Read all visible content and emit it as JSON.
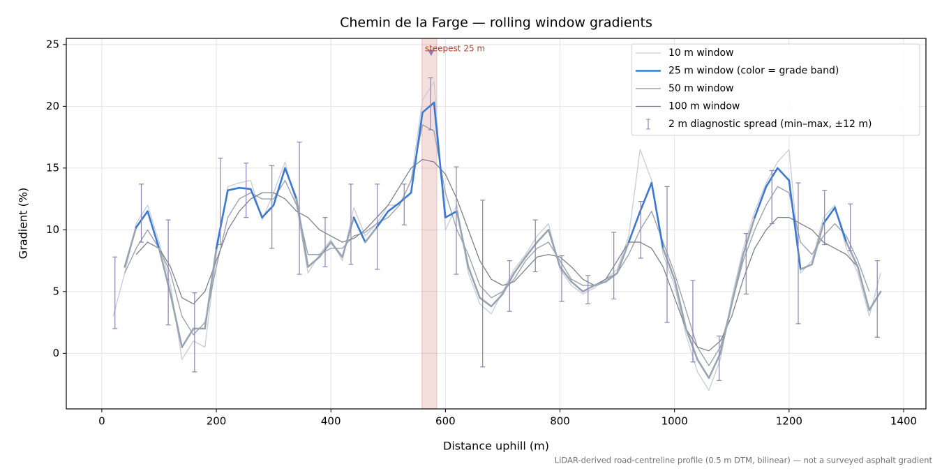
{
  "chart_data": {
    "type": "line",
    "title": "Chemin de la Farge — rolling window gradients",
    "x_label": "Distance uphill (m)",
    "y_label": "Gradient (%)",
    "footnote": "LiDAR-derived road-centreline profile (0.5 m DTM, bilinear) — not a surveyed asphalt gradient",
    "xlim": [
      -62,
      1439
    ],
    "ylim": [
      -4.5,
      25.5
    ],
    "xticks": [
      0,
      200,
      400,
      600,
      800,
      1000,
      1200,
      1400
    ],
    "yticks": [
      0,
      5,
      10,
      15,
      20,
      25
    ],
    "grid": true,
    "legend": "upper right",
    "x": [
      20,
      40,
      60,
      80,
      100,
      120,
      140,
      160,
      180,
      200,
      220,
      240,
      260,
      280,
      300,
      320,
      340,
      360,
      380,
      400,
      420,
      440,
      460,
      480,
      500,
      520,
      540,
      560,
      580,
      600,
      620,
      640,
      660,
      680,
      700,
      720,
      740,
      760,
      780,
      800,
      820,
      840,
      860,
      880,
      900,
      920,
      940,
      960,
      980,
      1000,
      1020,
      1040,
      1060,
      1080,
      1100,
      1120,
      1140,
      1160,
      1180,
      1200,
      1220,
      1240,
      1260,
      1280,
      1300,
      1320,
      1340,
      1360
    ],
    "series": [
      {
        "name": "10 m window",
        "color": "#c6ccd6",
        "width": 1.3,
        "values": [
          3.0,
          6.5,
          10.5,
          12.0,
          9.0,
          5.5,
          -0.5,
          1.0,
          0.5,
          8.0,
          13.5,
          13.8,
          14.0,
          10.8,
          13.0,
          15.5,
          12.0,
          6.5,
          8.0,
          9.2,
          7.5,
          11.8,
          9.5,
          10.5,
          12.0,
          12.0,
          14.0,
          20.5,
          22.0,
          10.0,
          12.0,
          6.5,
          4.0,
          3.2,
          5.0,
          6.8,
          8.0,
          9.5,
          10.5,
          6.8,
          5.5,
          4.8,
          5.3,
          6.0,
          6.8,
          9.5,
          16.5,
          14.0,
          8.0,
          5.5,
          1.5,
          -1.5,
          -3.0,
          -0.5,
          4.5,
          8.5,
          11.5,
          13.8,
          15.5,
          16.5,
          6.5,
          7.5,
          11.0,
          12.0,
          8.5,
          6.5,
          3.0,
          6.5
        ]
      },
      {
        "name": "25 m window (color = grade band)",
        "color": "#3a78d4",
        "width": 2.6,
        "band_thresholds": [
          10,
          20
        ],
        "band_colors": [
          "#98a4b2",
          "#3a78d4",
          "#e0861a"
        ],
        "values": [
          null,
          7.0,
          10.2,
          11.5,
          8.5,
          4.8,
          0.5,
          2.0,
          2.0,
          8.5,
          13.2,
          13.4,
          13.3,
          11.0,
          12.0,
          15.0,
          12.5,
          7.0,
          7.8,
          9.0,
          7.8,
          11.0,
          9.0,
          10.2,
          11.5,
          12.2,
          13.0,
          19.5,
          20.3,
          11.0,
          11.5,
          7.0,
          4.5,
          3.8,
          4.8,
          6.5,
          7.8,
          9.0,
          10.0,
          7.0,
          5.8,
          5.0,
          5.5,
          5.8,
          6.5,
          9.0,
          11.5,
          13.8,
          8.5,
          6.0,
          2.0,
          -0.5,
          -2.0,
          0.0,
          4.0,
          8.0,
          11.0,
          13.5,
          15.0,
          14.0,
          6.8,
          7.2,
          10.5,
          11.8,
          9.0,
          7.0,
          3.5,
          5.0
        ]
      },
      {
        "name": "50 m window",
        "color": "#9aa3b0",
        "width": 1.4,
        "values": [
          null,
          6.5,
          8.5,
          10.0,
          8.5,
          6.5,
          3.0,
          1.5,
          2.5,
          7.0,
          11.0,
          12.5,
          13.0,
          12.5,
          12.5,
          14.0,
          12.0,
          8.0,
          8.0,
          8.5,
          8.5,
          9.5,
          9.8,
          10.5,
          11.0,
          12.0,
          14.0,
          18.5,
          18.0,
          13.0,
          10.0,
          8.0,
          5.5,
          4.5,
          5.0,
          6.0,
          7.5,
          8.5,
          9.0,
          7.5,
          6.0,
          5.5,
          5.5,
          6.0,
          6.5,
          8.0,
          10.0,
          11.5,
          9.0,
          6.5,
          3.5,
          0.5,
          -1.0,
          0.5,
          4.0,
          7.5,
          10.0,
          12.0,
          13.5,
          13.0,
          9.0,
          8.0,
          9.5,
          10.5,
          9.5,
          7.5,
          5.0,
          null
        ]
      },
      {
        "name": "100 m window",
        "color": "#7b808c",
        "width": 1.3,
        "values": [
          null,
          null,
          8.0,
          9.0,
          8.5,
          7.0,
          4.5,
          4.0,
          5.0,
          7.5,
          10.0,
          11.5,
          12.5,
          13.0,
          13.0,
          12.5,
          11.5,
          11.0,
          10.0,
          9.5,
          9.0,
          9.3,
          10.0,
          11.0,
          12.0,
          13.5,
          15.0,
          15.7,
          15.5,
          14.5,
          12.5,
          10.0,
          7.5,
          6.0,
          5.5,
          5.8,
          6.8,
          7.8,
          8.0,
          7.8,
          7.0,
          6.0,
          5.5,
          6.0,
          7.5,
          9.0,
          9.0,
          8.5,
          7.0,
          4.5,
          2.0,
          0.5,
          0.2,
          1.0,
          3.0,
          6.0,
          8.5,
          10.0,
          11.0,
          11.0,
          10.5,
          10.0,
          9.0,
          8.5,
          8.0,
          7.0,
          null,
          null
        ]
      }
    ],
    "error_bars": {
      "name": "2 m diagnostic spread (min–max, ±12 m)",
      "color": "#8c82b4",
      "x": [
        23,
        69,
        116,
        162,
        207,
        252,
        297,
        345,
        390,
        435,
        481,
        528,
        574,
        619,
        665,
        712,
        757,
        803,
        849,
        894,
        941,
        987,
        1032,
        1078,
        1125,
        1170,
        1216,
        1262,
        1307,
        1354
      ],
      "low": [
        2.0,
        9.0,
        2.3,
        -1.5,
        8.8,
        11.0,
        8.5,
        6.4,
        7.0,
        7.2,
        6.8,
        10.4,
        18.1,
        6.4,
        -1.1,
        3.4,
        6.6,
        4.2,
        4.0,
        4.4,
        7.7,
        2.5,
        -0.7,
        -2.2,
        4.8,
        10.5,
        2.4,
        8.8,
        8.3,
        1.3
      ],
      "high": [
        7.8,
        13.7,
        10.8,
        4.9,
        15.8,
        15.4,
        15.2,
        17.1,
        11.0,
        13.7,
        13.7,
        13.7,
        22.3,
        15.1,
        12.4,
        7.5,
        10.8,
        7.9,
        6.3,
        9.8,
        12.3,
        13.5,
        5.9,
        1.4,
        9.7,
        14.8,
        13.8,
        13.2,
        12.1,
        7.5
      ]
    },
    "highlight": {
      "text": "steepest 25 m",
      "color": "#c0392b",
      "span": [
        559,
        585
      ],
      "x": 575,
      "y": 24.3
    }
  }
}
